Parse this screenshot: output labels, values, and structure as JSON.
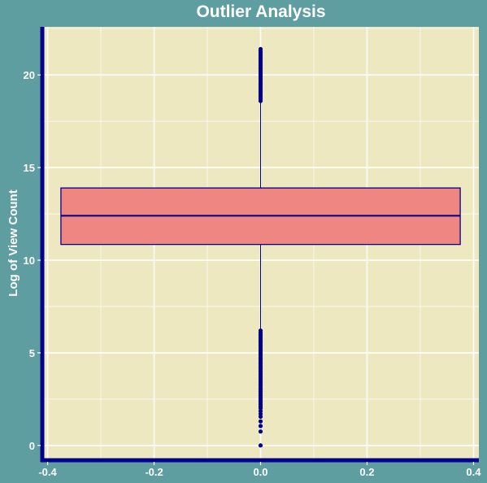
{
  "chart_data": {
    "type": "box",
    "title": "Outlier Analysis",
    "xlabel": "",
    "ylabel": "Log of View Count",
    "xlim": [
      -0.41,
      0.41
    ],
    "ylim": [
      -0.8,
      22.6
    ],
    "x_ticks": [
      -0.4,
      -0.2,
      0.0,
      0.2,
      0.4
    ],
    "x_tick_labels": [
      "-0.4",
      "-0.2",
      "0.0",
      "0.2",
      "0.4"
    ],
    "y_ticks": [
      0,
      5,
      10,
      15,
      20
    ],
    "y_tick_labels": [
      "0",
      "5",
      "10",
      "15",
      "20"
    ],
    "grid": true,
    "box": {
      "x_center": 0.0,
      "width": 0.75,
      "q1": 10.85,
      "median": 12.4,
      "q3": 13.9,
      "whisker_low": 6.3,
      "whisker_high": 18.5
    },
    "outliers": [
      0.0,
      0.75,
      1.05,
      1.3,
      1.55,
      1.7,
      1.85,
      2.0,
      2.1,
      2.2,
      2.3,
      2.4,
      2.5,
      2.6,
      2.7,
      2.8,
      2.9,
      3.0,
      3.1,
      3.2,
      3.3,
      3.4,
      3.5,
      3.6,
      3.7,
      3.8,
      3.9,
      4.0,
      4.1,
      4.2,
      4.3,
      4.4,
      4.5,
      4.6,
      4.7,
      4.8,
      4.9,
      5.0,
      5.1,
      5.2,
      5.3,
      5.4,
      5.5,
      5.6,
      5.7,
      5.8,
      5.9,
      6.0,
      6.1,
      6.2,
      18.6,
      18.7,
      18.8,
      18.9,
      19.0,
      19.1,
      19.2,
      19.3,
      19.4,
      19.5,
      19.6,
      19.7,
      19.8,
      19.9,
      20.0,
      20.1,
      20.2,
      20.3,
      20.4,
      20.5,
      20.6,
      20.7,
      20.8,
      20.9,
      21.0,
      21.1,
      21.2,
      21.3,
      21.4
    ],
    "colors": {
      "background": "#5f9ea0",
      "panel": "#eee8c1",
      "grid": "#ffffff",
      "box_fill": "#f08681",
      "box_stroke": "#00008b",
      "axis_line": "#00008b",
      "text": "#ffffff"
    }
  }
}
